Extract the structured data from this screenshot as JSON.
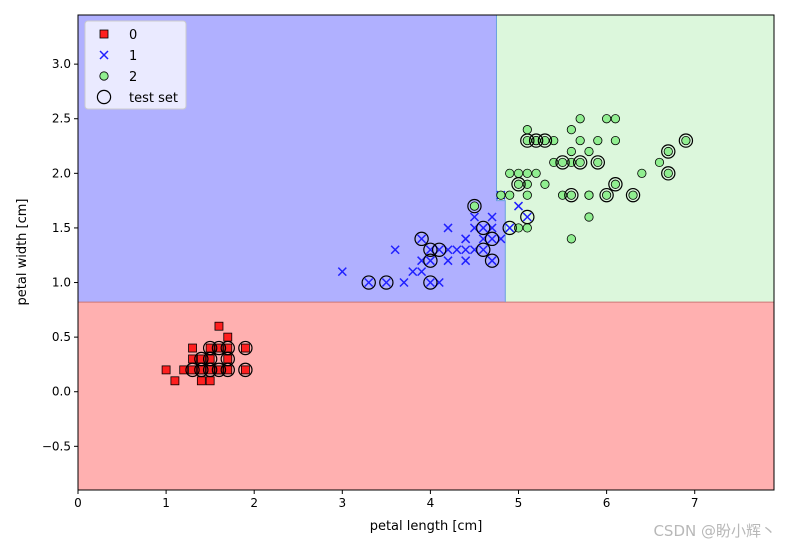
{
  "chart_data": {
    "type": "scatter",
    "title": "",
    "xlabel": "petal length [cm]",
    "ylabel": "petal width [cm]",
    "xlim": [
      0,
      7.9
    ],
    "ylim": [
      -0.9,
      3.45
    ],
    "xticks": [
      0,
      1,
      2,
      3,
      4,
      5,
      6,
      7
    ],
    "yticks": [
      -0.5,
      0.0,
      0.5,
      1.0,
      1.5,
      2.0,
      2.5,
      3.0
    ],
    "xtick_labels": [
      "0",
      "1",
      "2",
      "3",
      "4",
      "5",
      "6",
      "7"
    ],
    "ytick_labels": [
      "−0.5",
      "0.0",
      "0.5",
      "1.0",
      "1.5",
      "2.0",
      "2.5",
      "3.0"
    ],
    "grid": false,
    "legend_position": "top-left",
    "legend": [
      {
        "label": "0",
        "marker": "square"
      },
      {
        "label": "1",
        "marker": "x"
      },
      {
        "label": "2",
        "marker": "circle"
      },
      {
        "label": "test set",
        "marker": "open-circle"
      }
    ],
    "decision_regions": {
      "class_0": {
        "color": "#ffb0b0",
        "rule": "petal width < 0.82"
      },
      "class_1": {
        "color": "#b0b0ff",
        "rule": "petal width >= 0.82 and petal length < 4.75 (4.85 for width < 1.75)"
      },
      "class_2": {
        "color": "#dcf7dc",
        "rule": "petal width >= 0.82 and petal length >= 4.75 (4.85 for width < 1.75)"
      },
      "boundary_width": 0.82,
      "boundary_length_upper": 4.75,
      "boundary_length_lower": 4.85,
      "boundary_length_split_width": 1.75
    },
    "series": [
      {
        "name": "0",
        "marker": "square",
        "color": "#ff0000",
        "points": [
          [
            1.0,
            0.2
          ],
          [
            1.1,
            0.1
          ],
          [
            1.2,
            0.2
          ],
          [
            1.3,
            0.2
          ],
          [
            1.3,
            0.3
          ],
          [
            1.3,
            0.4
          ],
          [
            1.4,
            0.1
          ],
          [
            1.4,
            0.2
          ],
          [
            1.4,
            0.3
          ],
          [
            1.5,
            0.1
          ],
          [
            1.5,
            0.2
          ],
          [
            1.5,
            0.4
          ],
          [
            1.6,
            0.2
          ],
          [
            1.6,
            0.4
          ],
          [
            1.6,
            0.6
          ],
          [
            1.7,
            0.2
          ],
          [
            1.7,
            0.3
          ],
          [
            1.7,
            0.4
          ],
          [
            1.7,
            0.5
          ],
          [
            1.9,
            0.2
          ],
          [
            1.9,
            0.4
          ],
          [
            1.4,
            0.2
          ],
          [
            1.5,
            0.3
          ],
          [
            1.6,
            0.2
          ]
        ]
      },
      {
        "name": "1",
        "marker": "x",
        "color": "#0000ff",
        "points": [
          [
            3.0,
            1.1
          ],
          [
            3.3,
            1.0
          ],
          [
            3.5,
            1.0
          ],
          [
            3.6,
            1.3
          ],
          [
            3.7,
            1.0
          ],
          [
            3.8,
            1.1
          ],
          [
            3.9,
            1.1
          ],
          [
            3.9,
            1.2
          ],
          [
            3.9,
            1.4
          ],
          [
            4.0,
            1.0
          ],
          [
            4.0,
            1.2
          ],
          [
            4.0,
            1.3
          ],
          [
            4.1,
            1.0
          ],
          [
            4.1,
            1.3
          ],
          [
            4.2,
            1.2
          ],
          [
            4.2,
            1.3
          ],
          [
            4.2,
            1.5
          ],
          [
            4.3,
            1.3
          ],
          [
            4.4,
            1.2
          ],
          [
            4.4,
            1.3
          ],
          [
            4.4,
            1.4
          ],
          [
            4.5,
            1.3
          ],
          [
            4.5,
            1.5
          ],
          [
            4.5,
            1.6
          ],
          [
            4.6,
            1.3
          ],
          [
            4.6,
            1.4
          ],
          [
            4.6,
            1.5
          ],
          [
            4.7,
            1.2
          ],
          [
            4.7,
            1.4
          ],
          [
            4.7,
            1.5
          ],
          [
            4.7,
            1.6
          ],
          [
            4.8,
            1.4
          ],
          [
            4.8,
            1.8
          ],
          [
            4.9,
            1.5
          ],
          [
            5.0,
            1.7
          ],
          [
            5.1,
            1.6
          ],
          [
            4.4,
            1.4
          ]
        ]
      },
      {
        "name": "2",
        "marker": "circle",
        "color": "#90ee90",
        "points": [
          [
            4.5,
            1.7
          ],
          [
            4.8,
            1.8
          ],
          [
            4.9,
            1.8
          ],
          [
            4.9,
            2.0
          ],
          [
            5.0,
            1.5
          ],
          [
            5.0,
            1.9
          ],
          [
            5.0,
            2.0
          ],
          [
            5.1,
            1.5
          ],
          [
            5.1,
            1.8
          ],
          [
            5.1,
            1.9
          ],
          [
            5.1,
            2.0
          ],
          [
            5.1,
            2.3
          ],
          [
            5.1,
            2.4
          ],
          [
            5.2,
            2.0
          ],
          [
            5.2,
            2.3
          ],
          [
            5.3,
            1.9
          ],
          [
            5.3,
            2.3
          ],
          [
            5.4,
            2.1
          ],
          [
            5.4,
            2.3
          ],
          [
            5.5,
            1.8
          ],
          [
            5.5,
            2.1
          ],
          [
            5.6,
            1.4
          ],
          [
            5.6,
            1.8
          ],
          [
            5.6,
            2.1
          ],
          [
            5.6,
            2.2
          ],
          [
            5.6,
            2.4
          ],
          [
            5.7,
            2.1
          ],
          [
            5.7,
            2.3
          ],
          [
            5.7,
            2.5
          ],
          [
            5.8,
            1.6
          ],
          [
            5.8,
            1.8
          ],
          [
            5.8,
            2.2
          ],
          [
            5.9,
            2.1
          ],
          [
            5.9,
            2.3
          ],
          [
            6.0,
            1.8
          ],
          [
            6.0,
            2.5
          ],
          [
            6.1,
            1.9
          ],
          [
            6.1,
            2.3
          ],
          [
            6.1,
            2.5
          ],
          [
            6.3,
            1.8
          ],
          [
            6.4,
            2.0
          ],
          [
            6.6,
            2.1
          ],
          [
            6.7,
            2.0
          ],
          [
            6.7,
            2.2
          ],
          [
            6.9,
            2.3
          ],
          [
            5.2,
            2.3
          ],
          [
            5.8,
            1.8
          ]
        ]
      },
      {
        "name": "test set",
        "marker": "open-circle",
        "color": "#000000",
        "points": [
          [
            1.3,
            0.2
          ],
          [
            1.4,
            0.2
          ],
          [
            1.4,
            0.3
          ],
          [
            1.5,
            0.2
          ],
          [
            1.5,
            0.4
          ],
          [
            1.6,
            0.2
          ],
          [
            1.6,
            0.4
          ],
          [
            1.7,
            0.2
          ],
          [
            1.7,
            0.3
          ],
          [
            1.7,
            0.4
          ],
          [
            1.9,
            0.2
          ],
          [
            1.9,
            0.4
          ],
          [
            1.5,
            0.3
          ],
          [
            3.3,
            1.0
          ],
          [
            3.5,
            1.0
          ],
          [
            3.9,
            1.4
          ],
          [
            4.0,
            1.0
          ],
          [
            4.0,
            1.2
          ],
          [
            4.0,
            1.3
          ],
          [
            4.1,
            1.3
          ],
          [
            4.5,
            1.7
          ],
          [
            4.6,
            1.3
          ],
          [
            4.6,
            1.5
          ],
          [
            4.7,
            1.2
          ],
          [
            4.7,
            1.4
          ],
          [
            4.9,
            1.5
          ],
          [
            5.1,
            1.6
          ],
          [
            5.0,
            1.9
          ],
          [
            5.1,
            2.3
          ],
          [
            5.2,
            2.3
          ],
          [
            5.3,
            2.3
          ],
          [
            5.5,
            2.1
          ],
          [
            5.6,
            1.8
          ],
          [
            5.7,
            2.1
          ],
          [
            5.9,
            2.1
          ],
          [
            6.0,
            1.8
          ],
          [
            6.1,
            1.9
          ],
          [
            6.3,
            1.8
          ],
          [
            6.7,
            2.0
          ],
          [
            6.7,
            2.2
          ],
          [
            6.9,
            2.3
          ]
        ]
      }
    ]
  },
  "watermark": "CSDN @盼小辉丶",
  "colors": {
    "region_0": "#ffb0b0",
    "region_1": "#b0b0ff",
    "region_2": "#dcf7dc",
    "class_0": "#ff2020",
    "class_1": "#2020ff",
    "class_2": "#90ee90",
    "boundary_0": "#cc7777",
    "boundary_12": "#6aa0e0"
  }
}
